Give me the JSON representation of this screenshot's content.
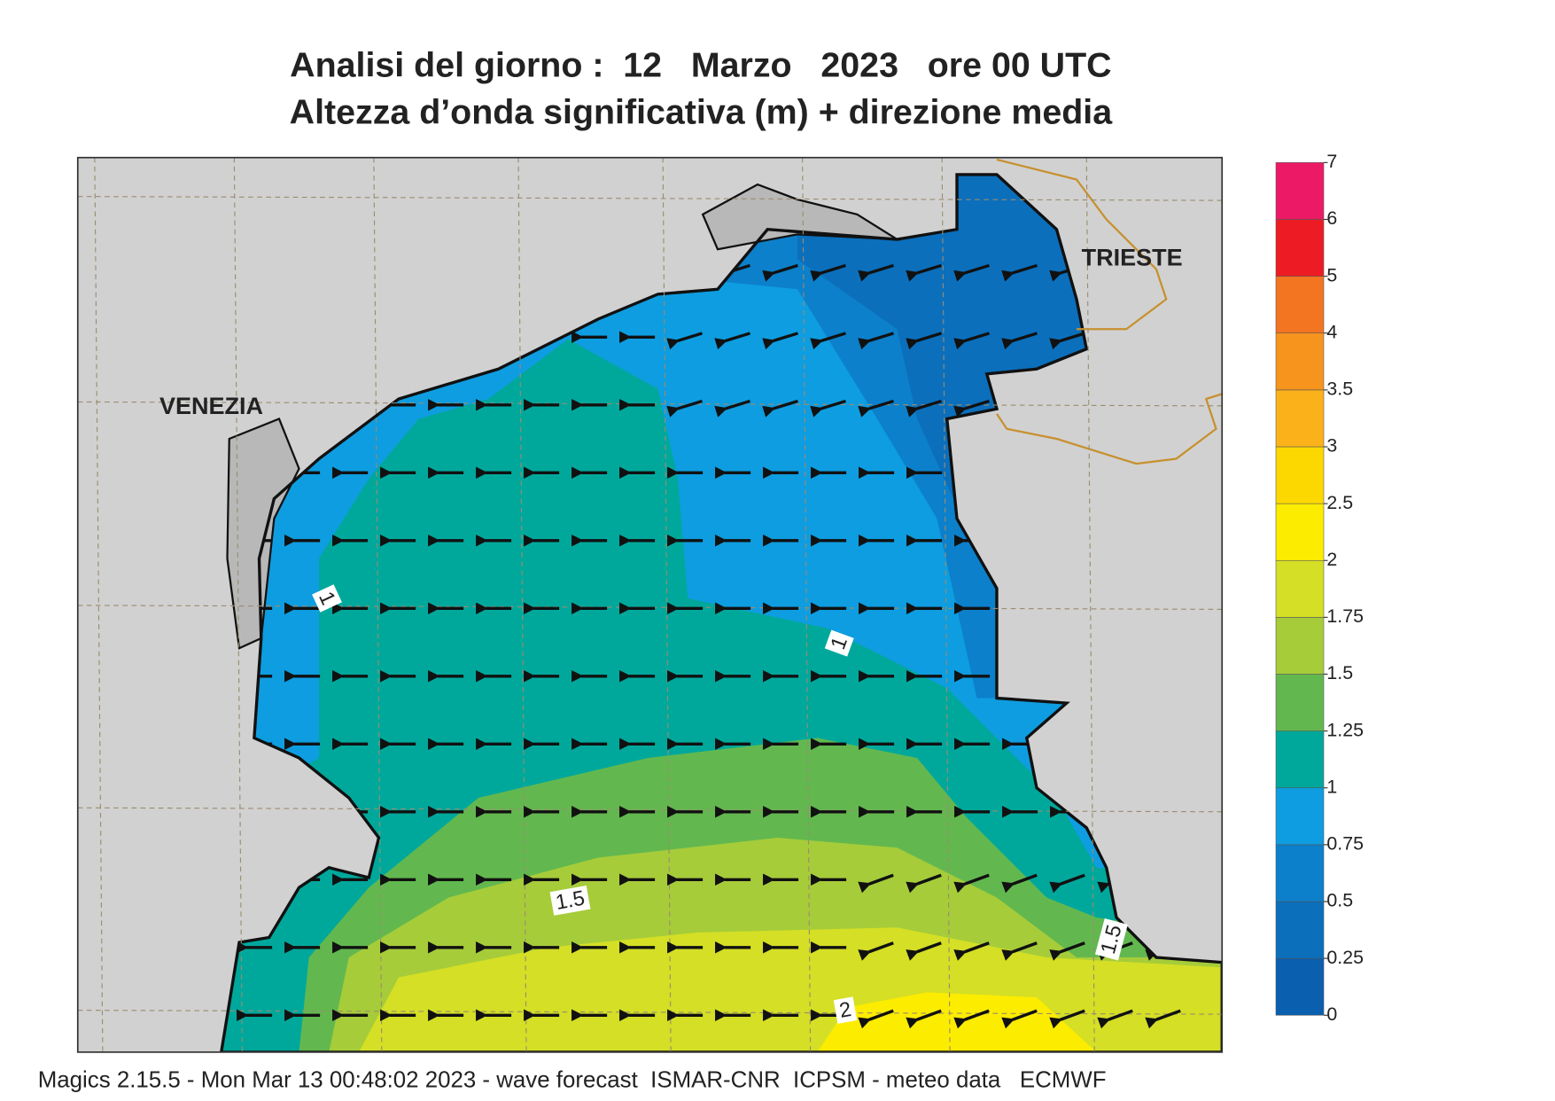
{
  "title": {
    "line1": "Analisi del giorno :  12   Marzo   2023   ore 00 UTC",
    "line2": "Altezza d’onda significativa (m) + direzione media"
  },
  "map": {
    "cities": [
      "VENEZIA",
      "TRIESTE"
    ],
    "contour_labels": [
      "1",
      "1",
      "1.5",
      "1.5",
      "2"
    ]
  },
  "colorbar": {
    "levels": [
      0,
      0.25,
      0.5,
      0.75,
      1,
      1.25,
      1.5,
      1.75,
      2,
      2.5,
      3,
      3.5,
      4,
      5,
      6,
      7
    ],
    "colors": [
      "#0a5fae",
      "#0b6fbc",
      "#0c80cb",
      "#0e9de0",
      "#00a89c",
      "#62b84f",
      "#a6cc3a",
      "#d4df25",
      "#fcec00",
      "#fdd800",
      "#fbb21a",
      "#f7941d",
      "#f37421",
      "#ed1c24",
      "#ec1a66"
    ]
  },
  "footer": "Magics 2.15.5 - Mon Mar 13 00:48:02 2023 - wave forecast  ISMAR-CNR  ICPSM - meteo data   ECMWF"
}
